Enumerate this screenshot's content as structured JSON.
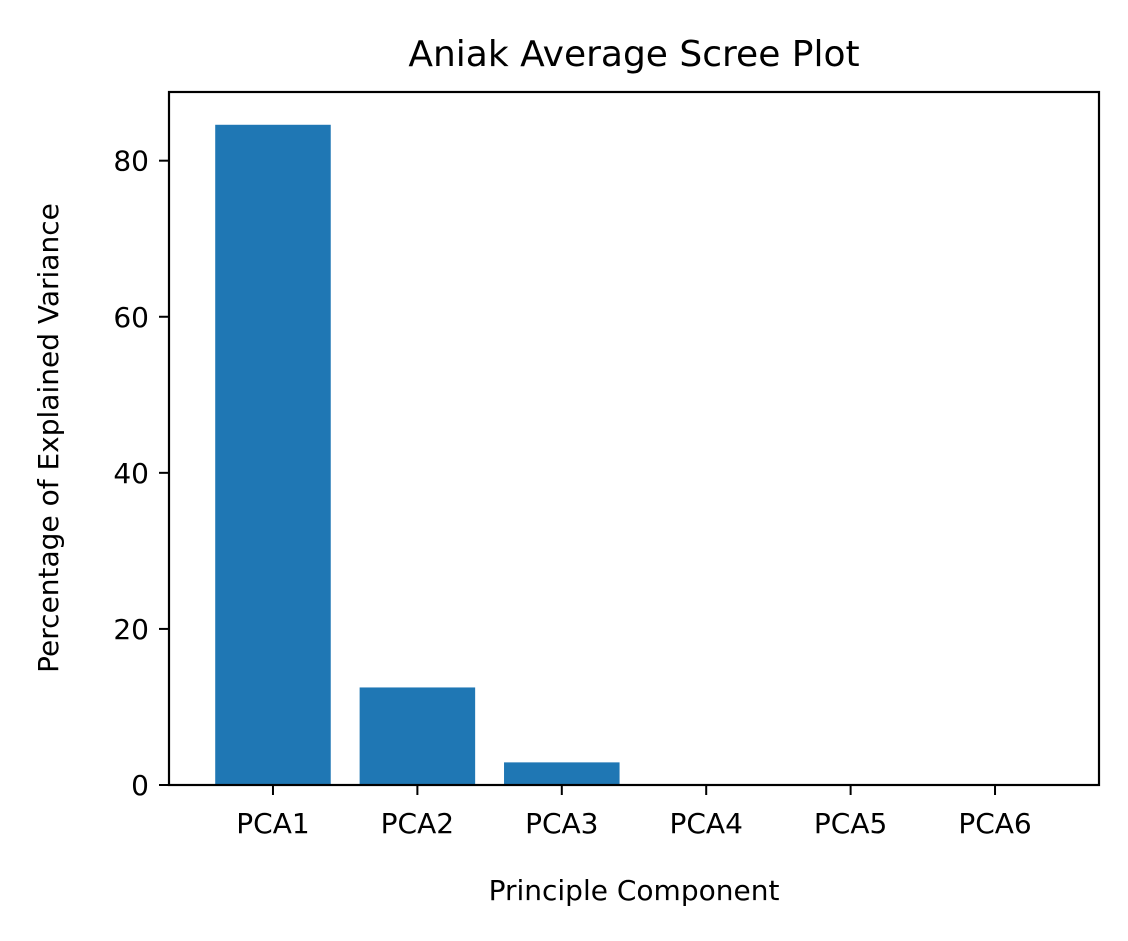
{
  "chart_data": {
    "type": "bar",
    "title": "Aniak Average Scree Plot",
    "xlabel": "Principle Component",
    "ylabel": "Percentage of Explained Variance",
    "categories": [
      "PCA1",
      "PCA2",
      "PCA3",
      "PCA4",
      "PCA5",
      "PCA6"
    ],
    "values": [
      84.6,
      12.5,
      2.9,
      0.0,
      0.0,
      0.0
    ],
    "ylim": [
      0,
      88.8
    ],
    "yticks": [
      0,
      20,
      40,
      60,
      80
    ],
    "grid": false,
    "bar_color": "#1f77b4"
  }
}
